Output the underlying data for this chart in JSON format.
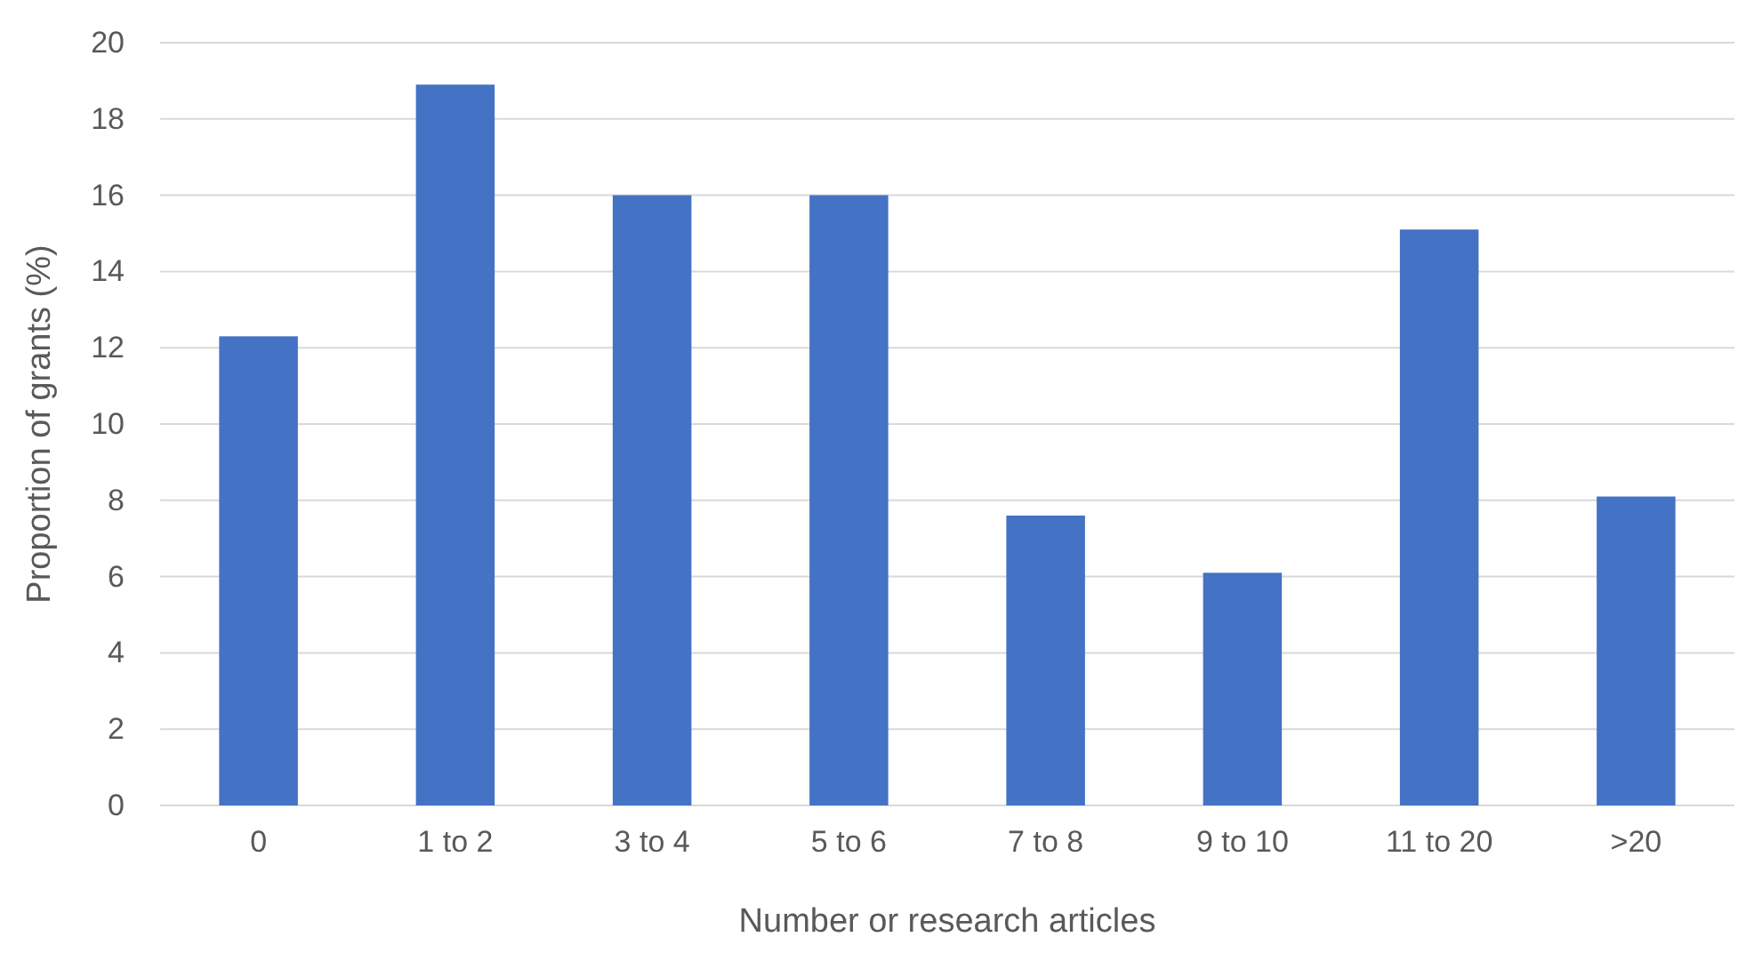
{
  "chart_data": {
    "type": "bar",
    "xlabel": "Number or research articles",
    "ylabel": "Proportion of grants (%)",
    "categories": [
      "0",
      "1 to 2",
      "3 to 4",
      "5 to 6",
      "7 to 8",
      "9 to 10",
      "11 to 20",
      ">20"
    ],
    "values": [
      12.3,
      18.9,
      16.0,
      16.0,
      7.6,
      6.1,
      15.1,
      8.1
    ],
    "color": "#4472c4",
    "ylim": [
      0,
      20
    ],
    "yticks": [
      0,
      2,
      4,
      6,
      8,
      10,
      12,
      14,
      16,
      18,
      20
    ],
    "grid": "y"
  }
}
